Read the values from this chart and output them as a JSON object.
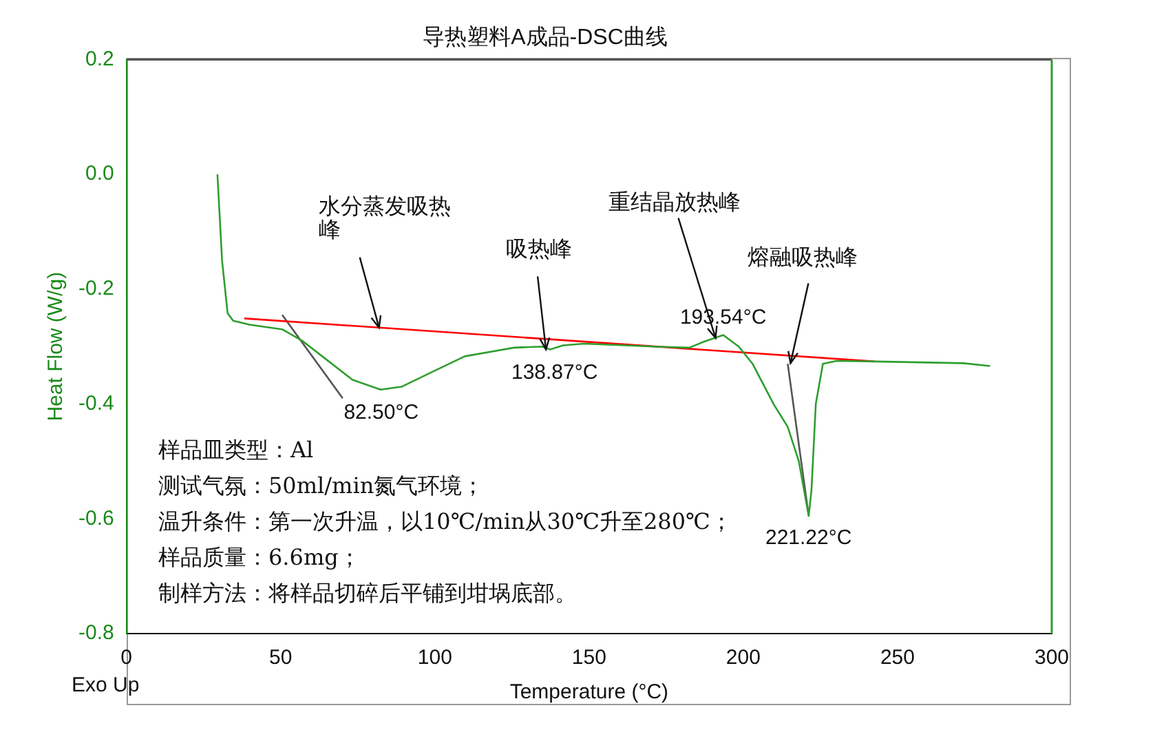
{
  "chart_data": {
    "type": "line",
    "title": "导热塑料A成品-DSC曲线",
    "xlabel": "Temperature (°C)",
    "ylabel": "Heat Flow (W/g)",
    "xlim": [
      0,
      300
    ],
    "xticks": [
      0,
      50,
      100,
      150,
      200,
      250,
      300
    ],
    "ylim": [
      -0.8,
      0.2
    ],
    "yticks": [
      {
        "value": -0.8,
        "label": "-0.8"
      },
      {
        "value": -0.6,
        "label": "-0.6"
      },
      {
        "value": -0.4,
        "label": "-0.4"
      },
      {
        "value": -0.2,
        "label": "-0.2"
      },
      {
        "value": 0,
        "label": "0.0"
      },
      {
        "value": 0.2,
        "label": "0.2"
      }
    ],
    "grid": false,
    "legend": false,
    "marker": "none",
    "line_style": "solid",
    "series": [
      {
        "color": "#2e9e2e",
        "x": [
          29.5,
          30.0,
          31.0,
          32.8,
          34.6,
          40,
          50.5,
          57,
          64.2,
          73.3,
          82.4,
          89.2,
          98.4,
          109.7,
          125.6,
          134.7,
          137.4,
          141.6,
          148.4,
          171,
          182.5,
          187,
          193.5,
          198.5,
          203,
          209.8,
          214.4,
          218,
          221.2,
          222.1,
          223.5,
          225.8,
          230.3,
          242.6,
          271.3,
          280
        ],
        "values": [
          0.0,
          -0.05,
          -0.15,
          -0.242,
          -0.255,
          -0.262,
          -0.27,
          -0.29,
          -0.32,
          -0.358,
          -0.375,
          -0.37,
          -0.346,
          -0.317,
          -0.302,
          -0.3,
          -0.305,
          -0.298,
          -0.295,
          -0.3,
          -0.302,
          -0.292,
          -0.28,
          -0.3,
          -0.33,
          -0.4,
          -0.44,
          -0.5,
          -0.595,
          -0.55,
          -0.4,
          -0.33,
          -0.325,
          -0.326,
          -0.329,
          -0.334
        ]
      },
      {
        "color": "#ff0000",
        "x": [
          38.2,
          242.6
        ],
        "values": [
          -0.251,
          -0.326
        ]
      },
      {
        "color": "#555555",
        "x": [
          50.5,
          70.1
        ],
        "values": [
          -0.245,
          -0.39
        ]
      },
      {
        "color": "#555555",
        "x": [
          214.4,
          221.2
        ],
        "values": [
          -0.33,
          -0.595
        ]
      }
    ],
    "annotations": [
      {
        "text": "82.50°C",
        "x": 82.5,
        "y": -0.375
      },
      {
        "text": "138.87°C",
        "x": 138.87,
        "y": -0.305
      },
      {
        "text": "193.54°C",
        "x": 193.54,
        "y": -0.28
      },
      {
        "text": "221.22°C",
        "x": 221.22,
        "y": -0.595
      },
      {
        "text": "水分蒸发吸热峰",
        "x": 81.9,
        "y": -0.267
      },
      {
        "text": "吸热峰",
        "x": 136,
        "y": -0.305
      },
      {
        "text": "重结晶放热峰",
        "x": 191,
        "y": -0.285
      },
      {
        "text": "熔融吸热峰",
        "x": 215.3,
        "y": -0.329
      },
      "样品皿类型：Al",
      "测试气氛：50ml/min氮气环境；",
      "温升条件：第一次升温，以10℃/min从30℃升至280℃；",
      "样品质量：6.6mg；",
      "制样方法：将样品切碎后平铺到坩埚底部。",
      "Exo Up"
    ]
  }
}
